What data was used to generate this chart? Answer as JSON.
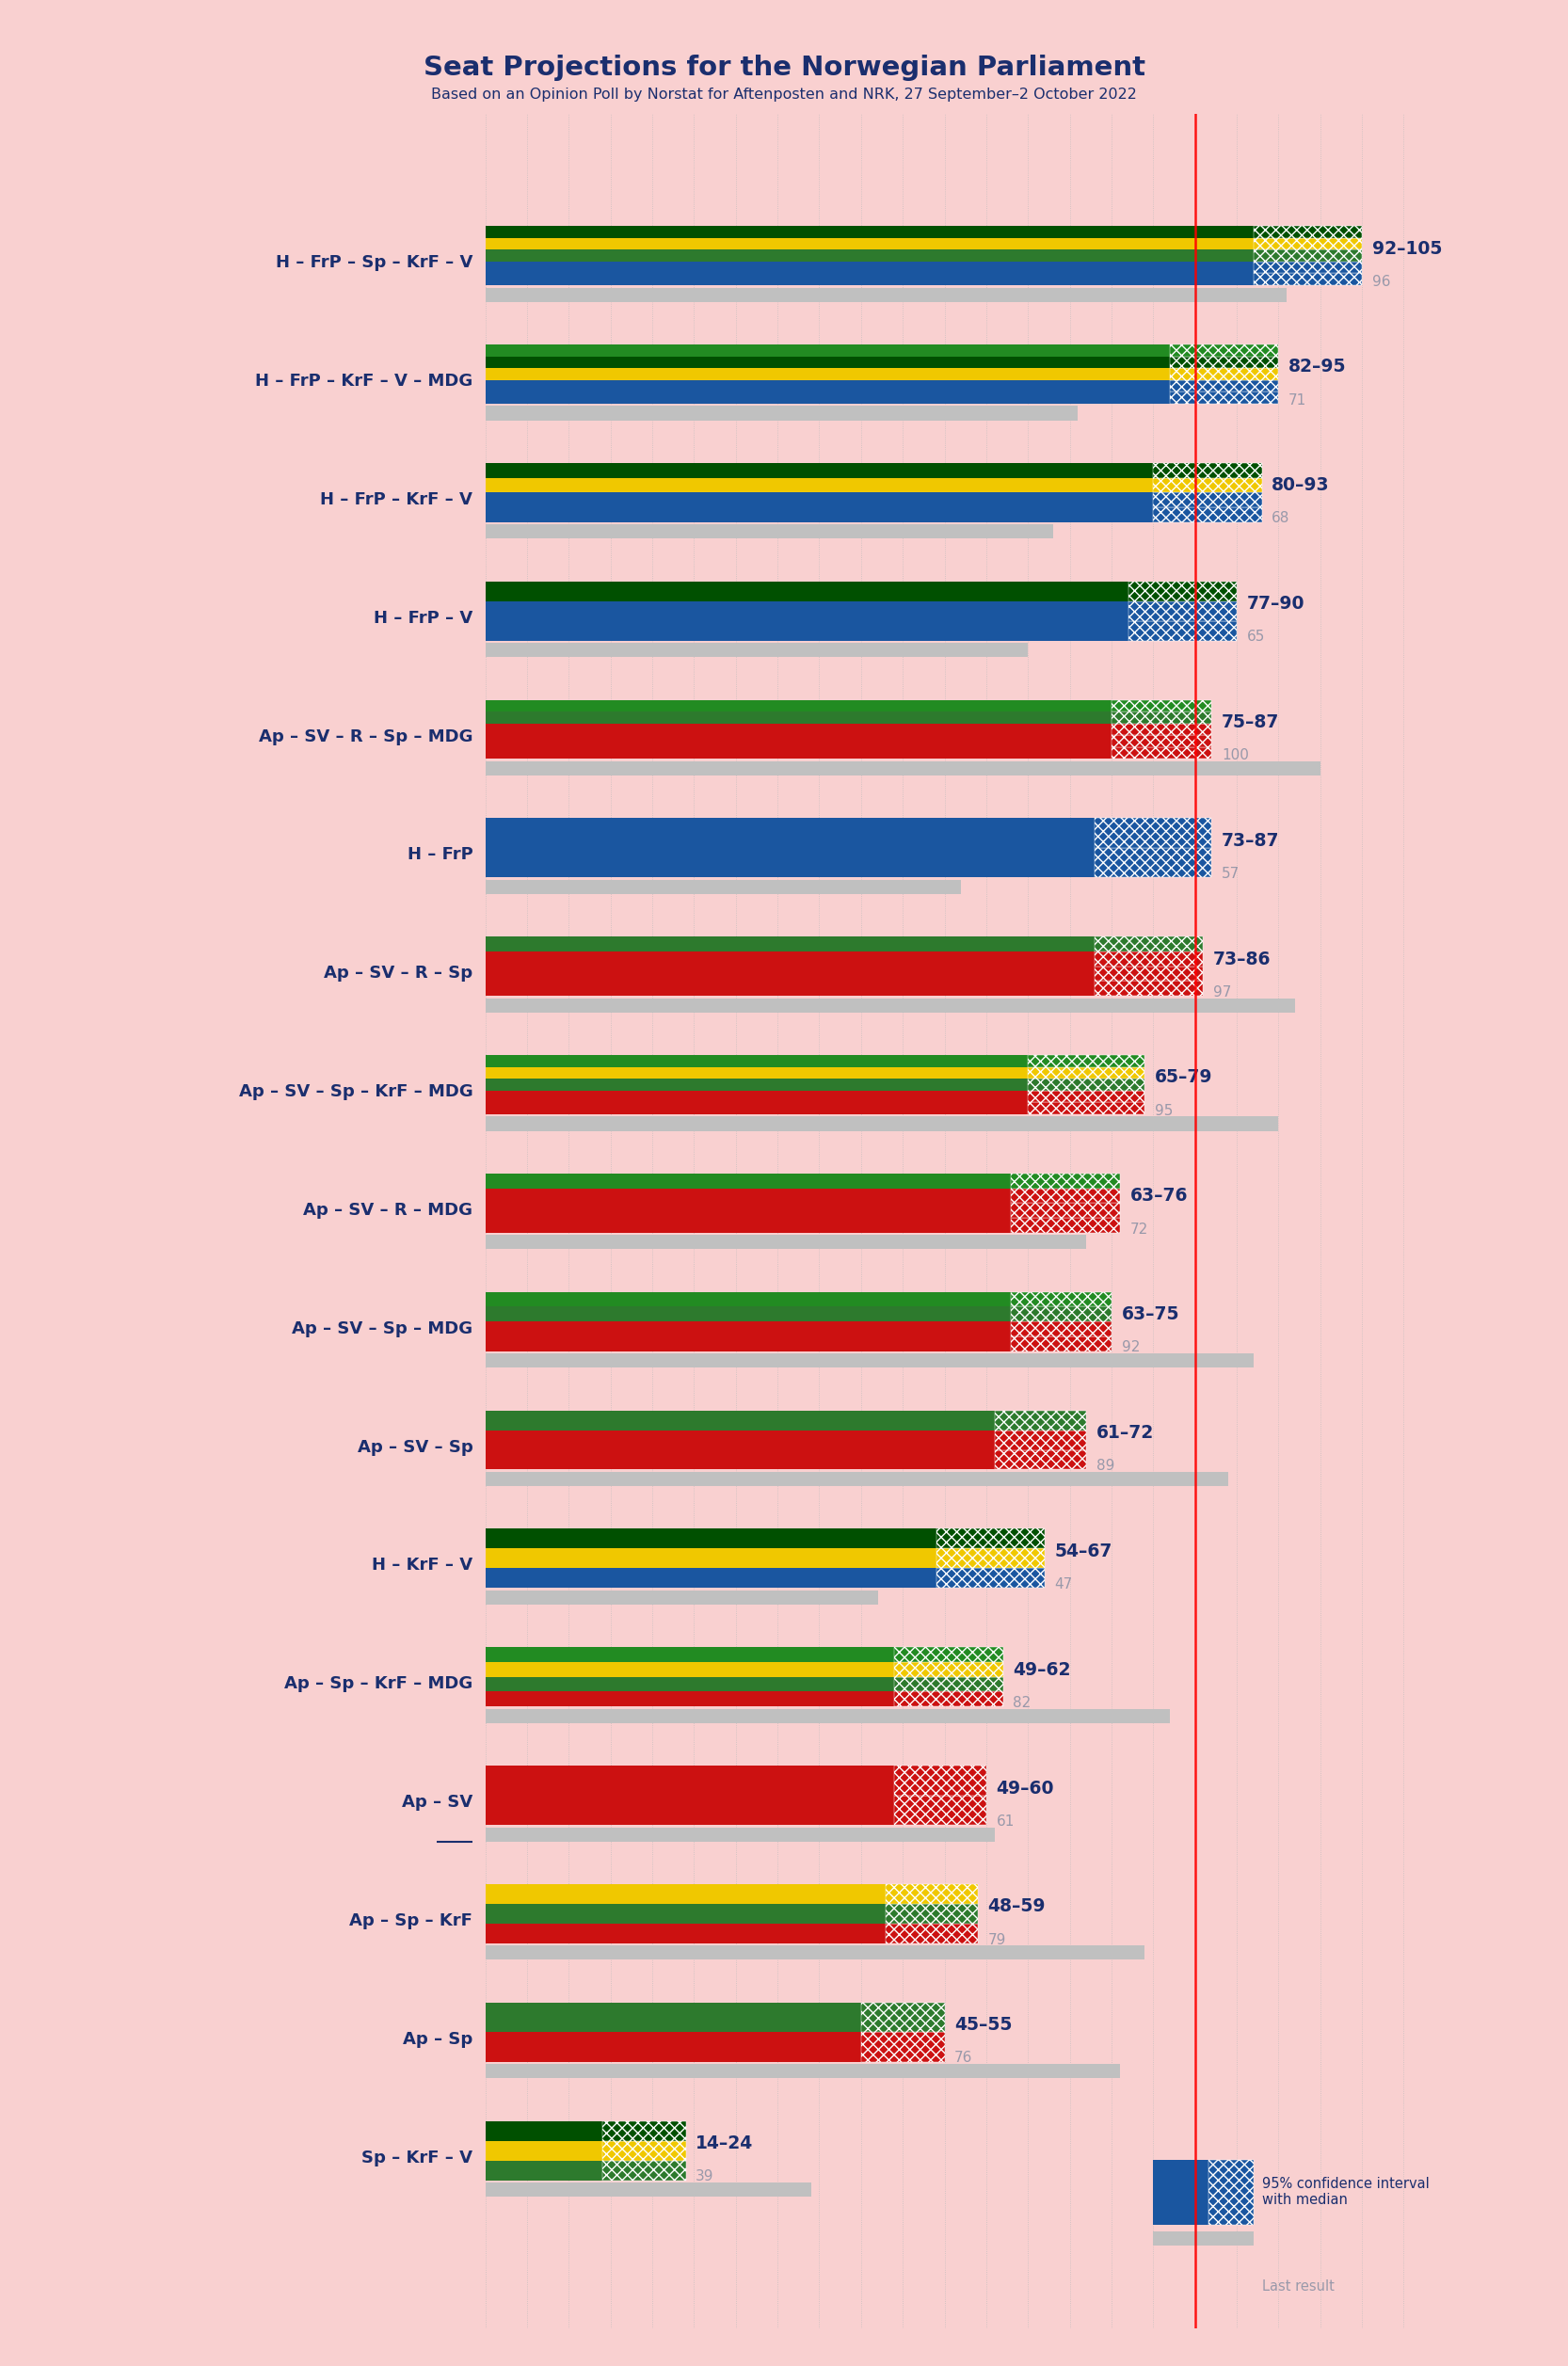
{
  "title": "Seat Projections for the Norwegian Parliament",
  "subtitle": "Based on an Opinion Poll by Norstat for Aftenposten and NRK, 27 September–2 October 2022",
  "background_color": "#f9d0d0",
  "title_color": "#1a2e6e",
  "subtitle_color": "#1a2e6e",
  "x_max": 110,
  "majority_line": 85,
  "coalitions": [
    {
      "name": "H – FrP – Sp – KrF – V",
      "ci_low": 92,
      "ci_high": 105,
      "last_result": 96,
      "stripe_colors": [
        "#1a56a0",
        "#1a56a0",
        "#2d7a2d",
        "#f0c800",
        "#005000"
      ],
      "underline": false
    },
    {
      "name": "H – FrP – KrF – V – MDG",
      "ci_low": 82,
      "ci_high": 95,
      "last_result": 71,
      "stripe_colors": [
        "#1a56a0",
        "#1a56a0",
        "#f0c800",
        "#005000",
        "#228B22"
      ],
      "underline": false
    },
    {
      "name": "H – FrP – KrF – V",
      "ci_low": 80,
      "ci_high": 93,
      "last_result": 68,
      "stripe_colors": [
        "#1a56a0",
        "#1a56a0",
        "#f0c800",
        "#005000"
      ],
      "underline": false
    },
    {
      "name": "H – FrP – V",
      "ci_low": 77,
      "ci_high": 90,
      "last_result": 65,
      "stripe_colors": [
        "#1a56a0",
        "#1a56a0",
        "#005000"
      ],
      "underline": false
    },
    {
      "name": "Ap – SV – R – Sp – MDG",
      "ci_low": 75,
      "ci_high": 87,
      "last_result": 100,
      "stripe_colors": [
        "#cc1111",
        "#cc1111",
        "#cc1111",
        "#2d7a2d",
        "#228B22"
      ],
      "underline": false
    },
    {
      "name": "H – FrP",
      "ci_low": 73,
      "ci_high": 87,
      "last_result": 57,
      "stripe_colors": [
        "#1a56a0",
        "#1a56a0"
      ],
      "underline": false
    },
    {
      "name": "Ap – SV – R – Sp",
      "ci_low": 73,
      "ci_high": 86,
      "last_result": 97,
      "stripe_colors": [
        "#cc1111",
        "#cc1111",
        "#cc1111",
        "#2d7a2d"
      ],
      "underline": false
    },
    {
      "name": "Ap – SV – Sp – KrF – MDG",
      "ci_low": 65,
      "ci_high": 79,
      "last_result": 95,
      "stripe_colors": [
        "#cc1111",
        "#cc1111",
        "#2d7a2d",
        "#f0c800",
        "#228B22"
      ],
      "underline": false
    },
    {
      "name": "Ap – SV – R – MDG",
      "ci_low": 63,
      "ci_high": 76,
      "last_result": 72,
      "stripe_colors": [
        "#cc1111",
        "#cc1111",
        "#cc1111",
        "#228B22"
      ],
      "underline": false
    },
    {
      "name": "Ap – SV – Sp – MDG",
      "ci_low": 63,
      "ci_high": 75,
      "last_result": 92,
      "stripe_colors": [
        "#cc1111",
        "#cc1111",
        "#2d7a2d",
        "#228B22"
      ],
      "underline": false
    },
    {
      "name": "Ap – SV – Sp",
      "ci_low": 61,
      "ci_high": 72,
      "last_result": 89,
      "stripe_colors": [
        "#cc1111",
        "#cc1111",
        "#2d7a2d"
      ],
      "underline": false
    },
    {
      "name": "H – KrF – V",
      "ci_low": 54,
      "ci_high": 67,
      "last_result": 47,
      "stripe_colors": [
        "#1a56a0",
        "#f0c800",
        "#005000"
      ],
      "underline": false
    },
    {
      "name": "Ap – Sp – KrF – MDG",
      "ci_low": 49,
      "ci_high": 62,
      "last_result": 82,
      "stripe_colors": [
        "#cc1111",
        "#2d7a2d",
        "#f0c800",
        "#228B22"
      ],
      "underline": false
    },
    {
      "name": "Ap – SV",
      "ci_low": 49,
      "ci_high": 60,
      "last_result": 61,
      "stripe_colors": [
        "#cc1111",
        "#cc1111"
      ],
      "underline": true
    },
    {
      "name": "Ap – Sp – KrF",
      "ci_low": 48,
      "ci_high": 59,
      "last_result": 79,
      "stripe_colors": [
        "#cc1111",
        "#2d7a2d",
        "#f0c800"
      ],
      "underline": false
    },
    {
      "name": "Ap – Sp",
      "ci_low": 45,
      "ci_high": 55,
      "last_result": 76,
      "stripe_colors": [
        "#cc1111",
        "#2d7a2d"
      ],
      "underline": false
    },
    {
      "name": "Sp – KrF – V",
      "ci_low": 14,
      "ci_high": 24,
      "last_result": 39,
      "stripe_colors": [
        "#2d7a2d",
        "#f0c800",
        "#005000"
      ],
      "underline": false
    }
  ]
}
